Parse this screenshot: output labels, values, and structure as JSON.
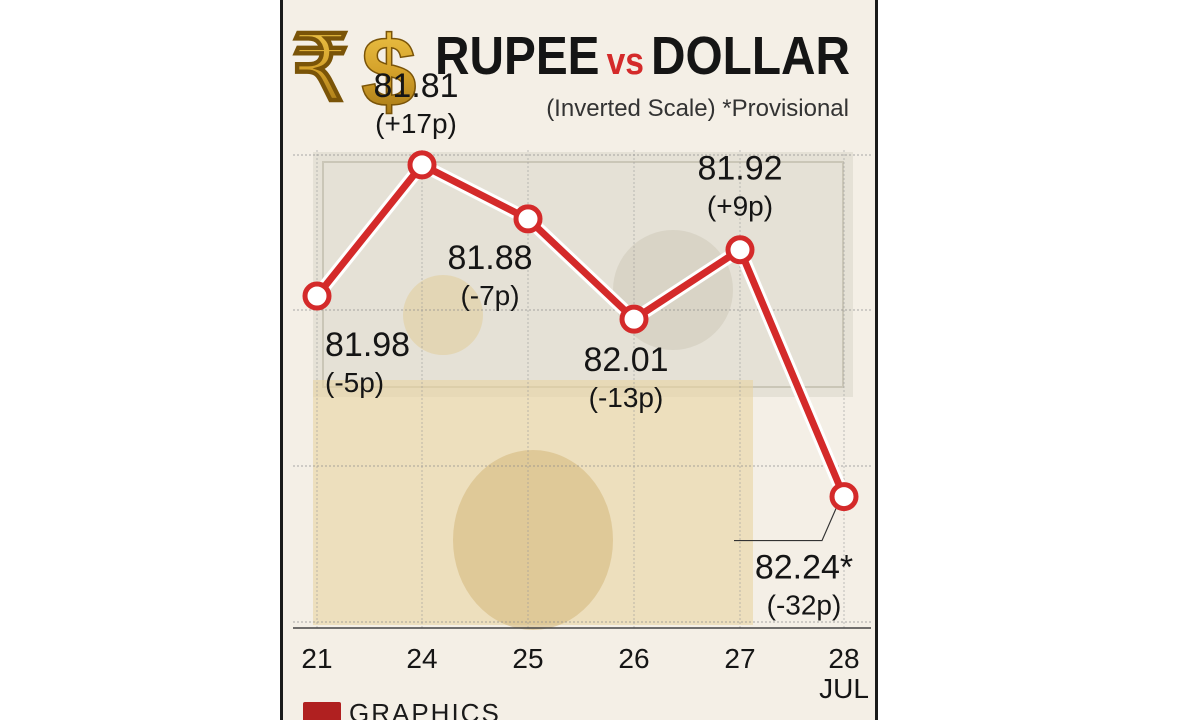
{
  "title": {
    "part1": "RUPEE",
    "vs": "vs",
    "part2": "DOLLAR",
    "subtitle": "(Inverted Scale)  *Provisional",
    "rupee_symbol": "₹",
    "dollar_symbol": "$"
  },
  "footer": {
    "label": "GRAPHICS"
  },
  "colors": {
    "line": "#d42a2a",
    "highlight": "#d42a2a",
    "text": "#151515",
    "gold": "#c8941c"
  },
  "chart_data": {
    "type": "line",
    "title": "RUPEE vs DOLLAR",
    "subtitle": "(Inverted Scale)  *Provisional",
    "x_unit": "JUL",
    "categories": [
      "21",
      "24",
      "25",
      "26",
      "27",
      "28"
    ],
    "values": [
      81.98,
      81.81,
      81.88,
      82.01,
      81.92,
      82.24
    ],
    "labels": [
      "81.98",
      "81.81",
      "81.88",
      "82.01",
      "81.92",
      "82.24*"
    ],
    "changes": [
      "(-5p)",
      "(+17p)",
      "(-7p)",
      "(-13p)",
      "(+9p)",
      "(-32p)"
    ],
    "inverted_y": true,
    "ylim": [
      81.7,
      82.4
    ],
    "grid": "horizontal",
    "highlight_category": "28"
  }
}
